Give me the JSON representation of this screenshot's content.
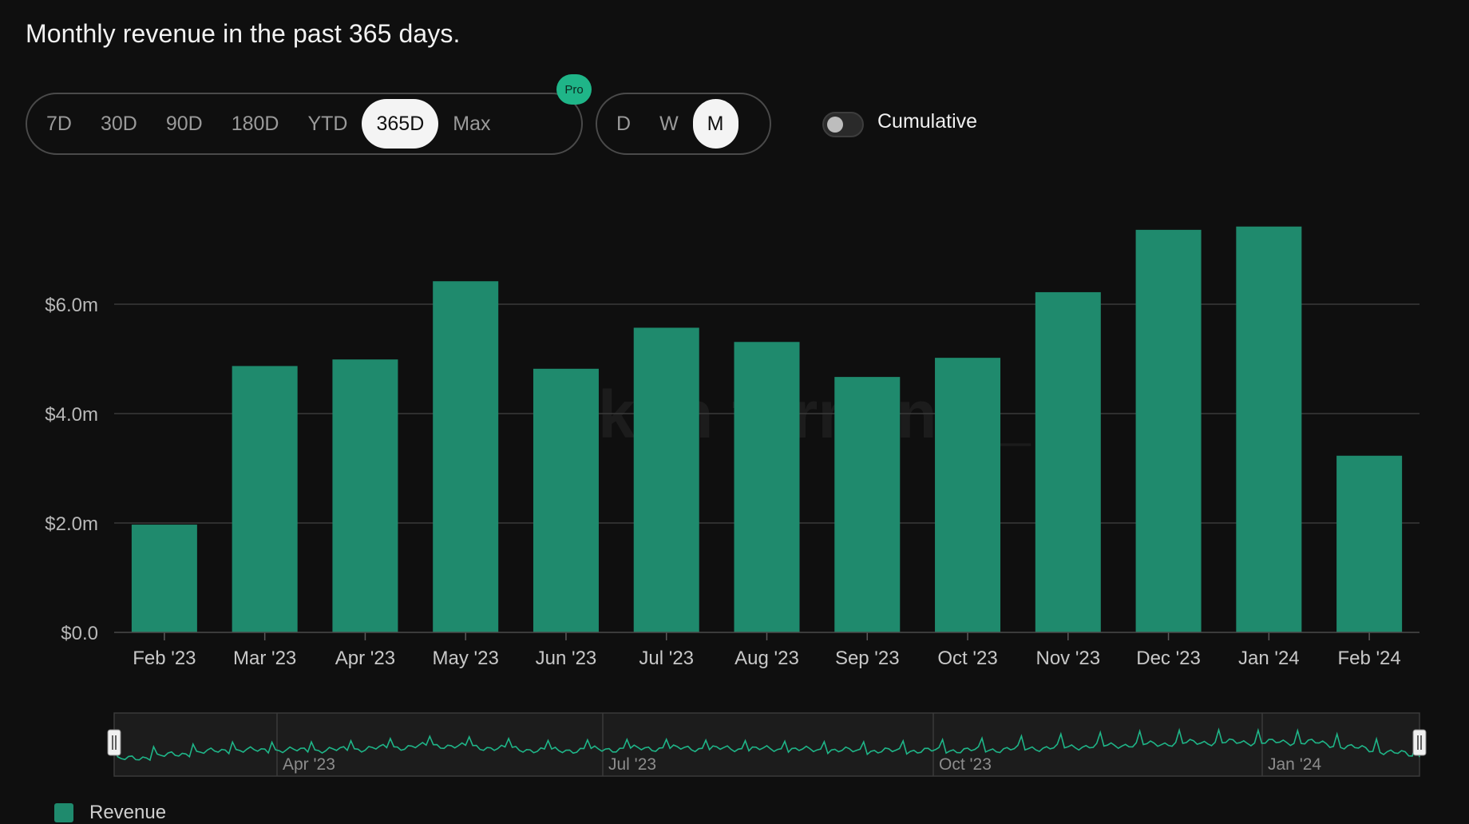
{
  "title": "Monthly revenue in the past 365 days.",
  "range_options": [
    "7D",
    "30D",
    "90D",
    "180D",
    "YTD",
    "365D",
    "Max"
  ],
  "range_selected": "365D",
  "pro_badge": "Pro",
  "granularity_options": [
    "D",
    "W",
    "M"
  ],
  "granularity_selected": "M",
  "cumulative": {
    "label": "Cumulative",
    "enabled": false
  },
  "watermark": "token terminal_",
  "colors": {
    "bar": "#1f8a6d",
    "grid": "#3a3a3a",
    "background": "#0f0f0f",
    "accent": "#1fb588"
  },
  "chart_data": {
    "type": "bar",
    "title": "Monthly revenue in the past 365 days.",
    "categories": [
      "Feb '23",
      "Mar '23",
      "Apr '23",
      "May '23",
      "Jun '23",
      "Jul '23",
      "Aug '23",
      "Sep '23",
      "Oct '23",
      "Nov '23",
      "Dec '23",
      "Jan '24",
      "Feb '24"
    ],
    "series": [
      {
        "name": "Revenue",
        "values": [
          1.97,
          4.87,
          4.99,
          6.42,
          4.82,
          5.57,
          5.31,
          4.67,
          5.02,
          6.22,
          7.36,
          7.42,
          3.23
        ]
      }
    ],
    "yticks": [
      "$0.0",
      "$2.0m",
      "$4.0m",
      "$6.0m"
    ],
    "ytick_values": [
      0,
      2,
      4,
      6
    ],
    "ylim": [
      0,
      7.7
    ],
    "grid": true,
    "legend": "bottom-left",
    "navigator": {
      "labels": [
        "Apr '23",
        "Jul '23",
        "Oct '23",
        "Jan '24"
      ]
    }
  }
}
